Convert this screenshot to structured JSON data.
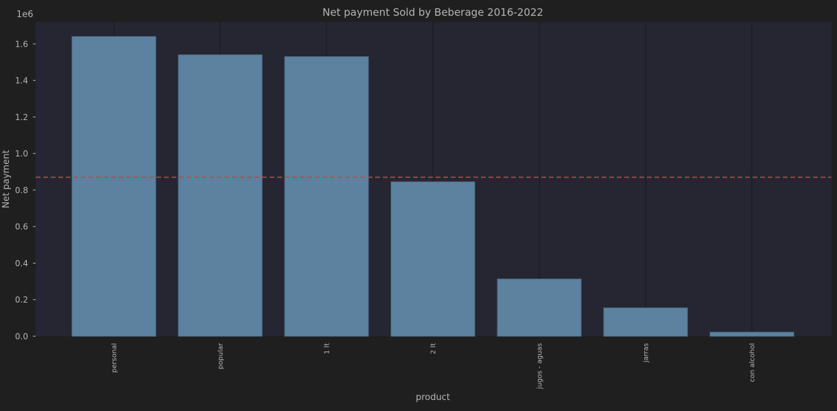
{
  "chart_data": {
    "type": "bar",
    "title": "Net payment Sold by Beberage 2016-2022",
    "xlabel": "product",
    "ylabel": "Net payment",
    "y_offset_label": "1e6",
    "categories": [
      "personal",
      "popular",
      "1 lt",
      "2 lt",
      "jugos - aguas",
      "jarras",
      "con alcohol"
    ],
    "values": [
      1640000,
      1540000,
      1530000,
      845000,
      313000,
      155000,
      22000
    ],
    "ylim": [
      0,
      1720000
    ],
    "yticks": [
      0,
      200000,
      400000,
      600000,
      800000,
      1000000,
      1200000,
      1400000,
      1600000
    ],
    "ytick_labels": [
      "0.0",
      "0.2",
      "0.4",
      "0.6",
      "0.8",
      "1.0",
      "1.2",
      "1.4",
      "1.6"
    ],
    "reference_line": {
      "value": 870000,
      "style": "dashed"
    },
    "grid": "vertical",
    "colors": {
      "figure_background": "#1f1f1f",
      "plot_background": "#252632",
      "bar_fill": "#5c82a0",
      "bar_edge": "#4e6f89",
      "reference_line": "#c0444c",
      "text": "#b4b4b4",
      "grid": "#17181f"
    }
  }
}
